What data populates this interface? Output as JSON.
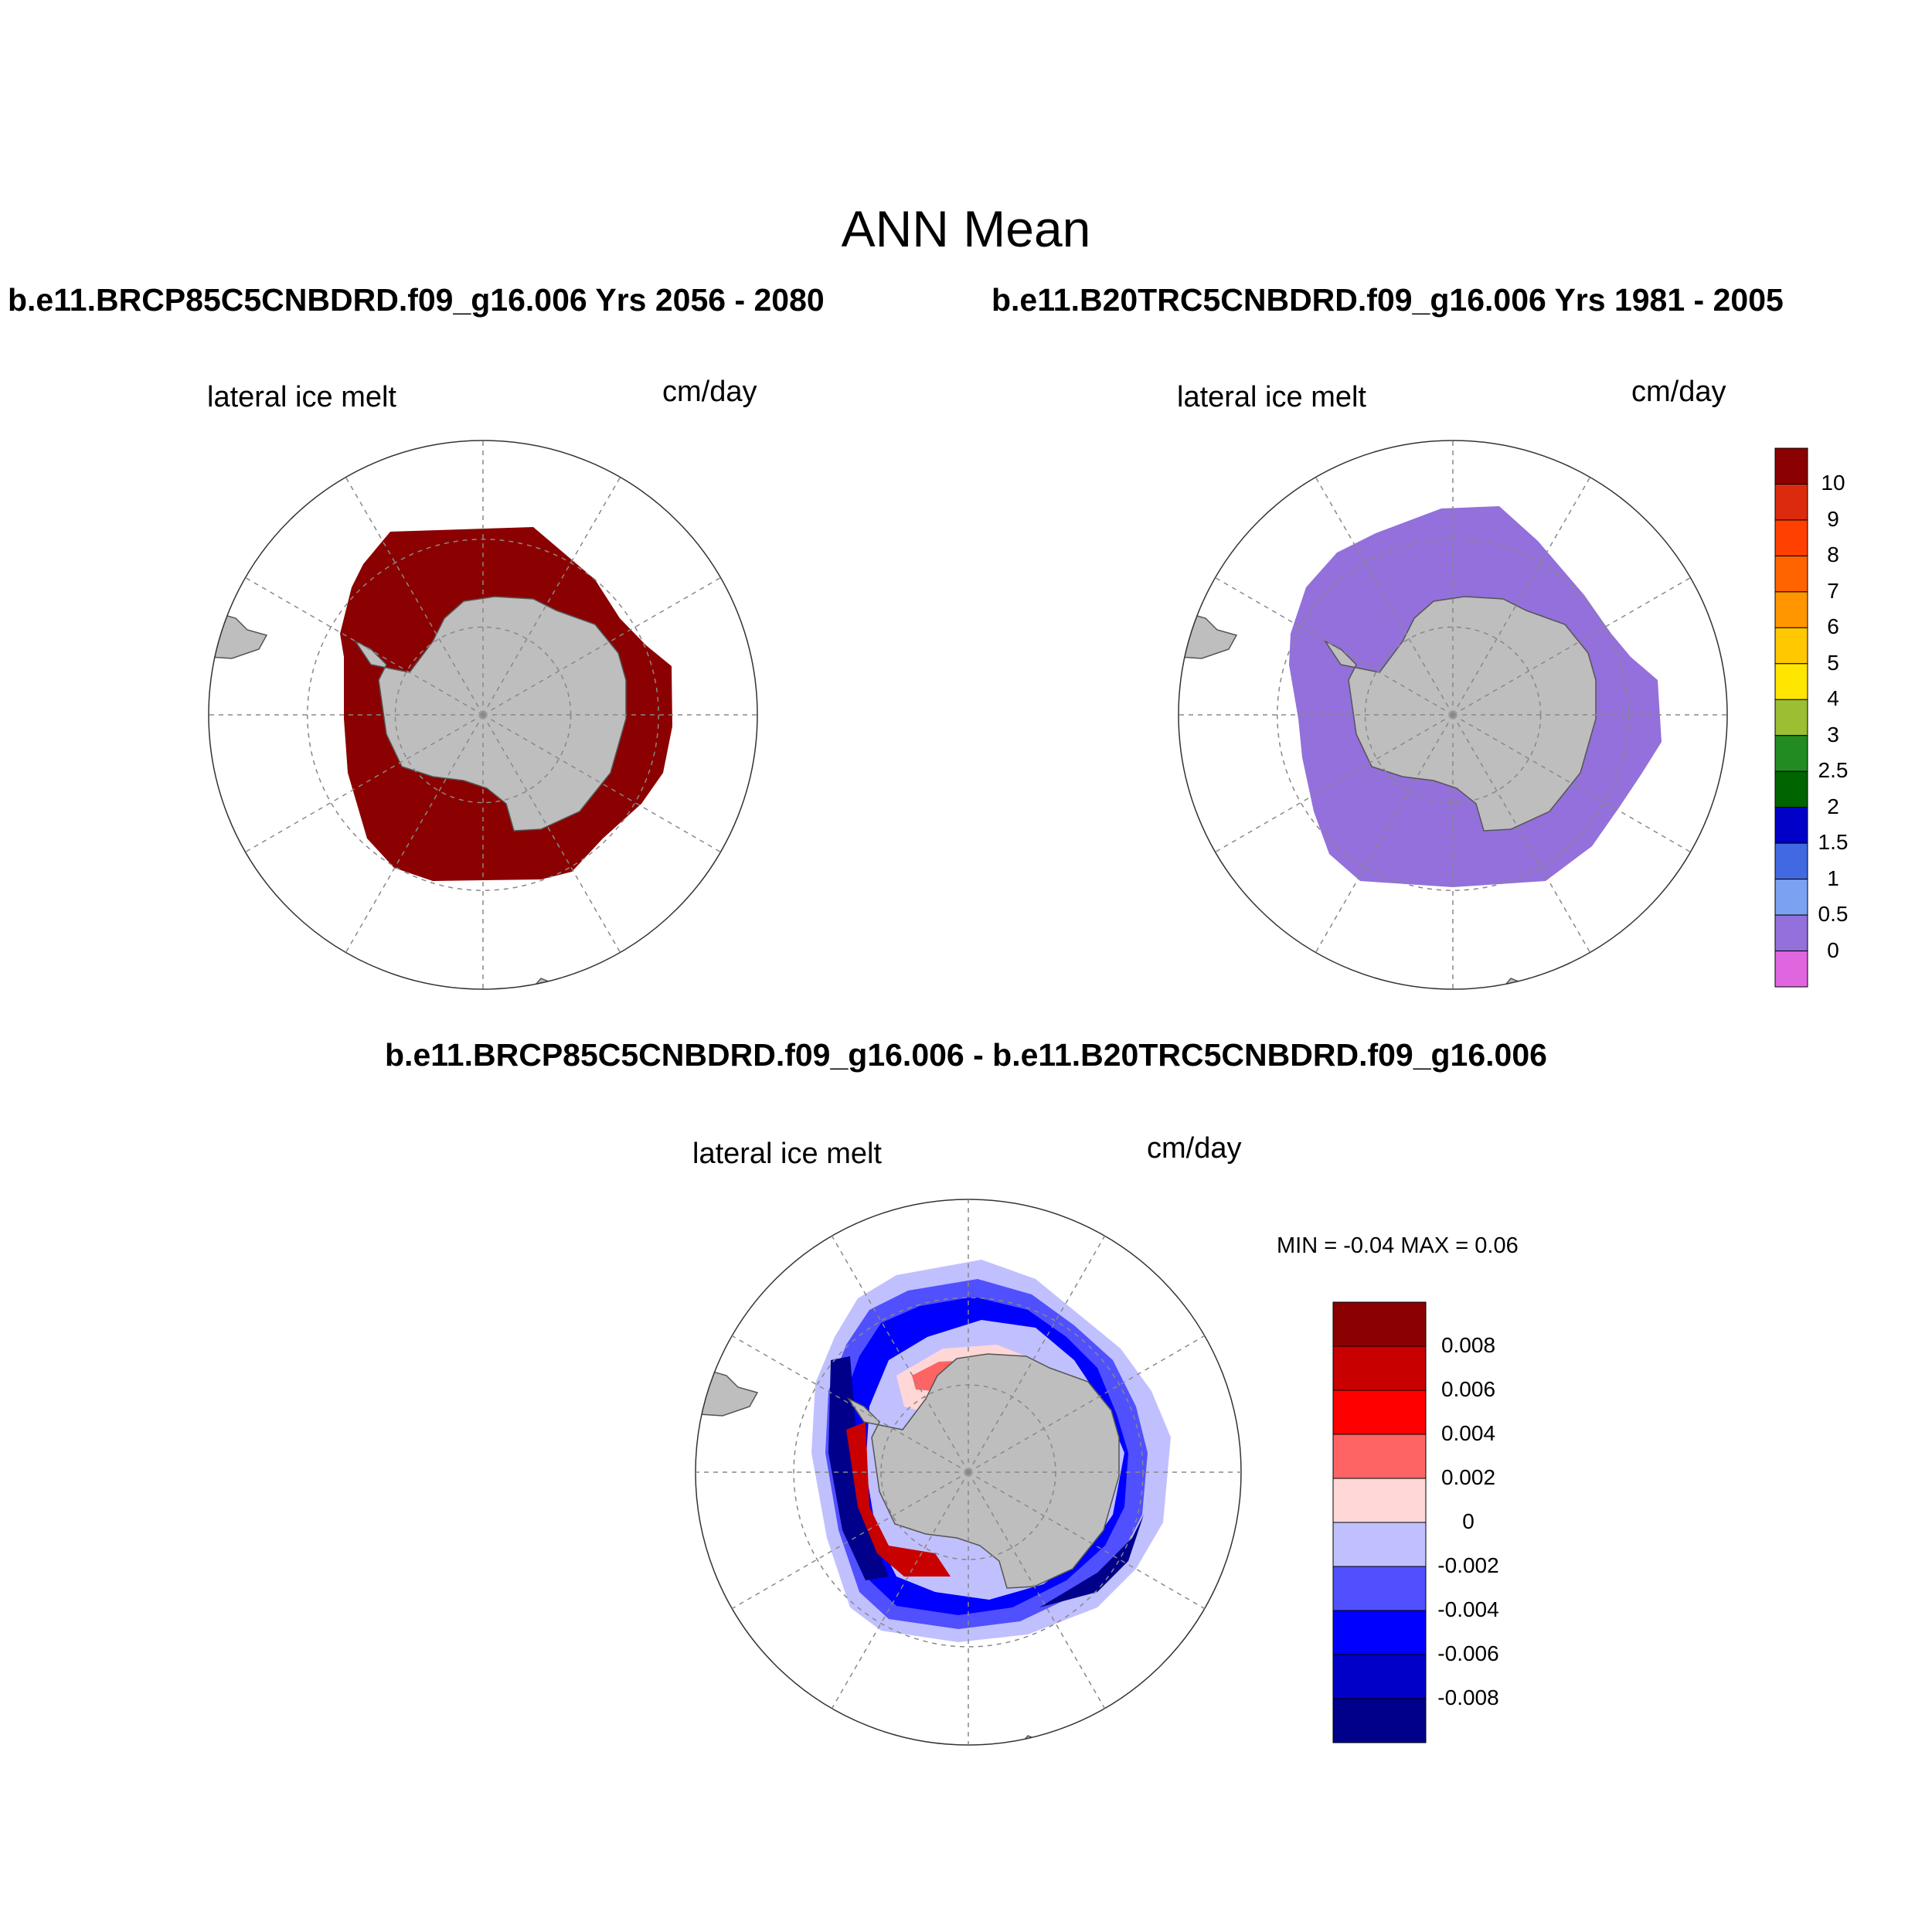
{
  "figure": {
    "title": "ANN Mean",
    "case_a_title": "b.e11.BRCP85C5CNBDRD.f09_g16.006  Yrs 2056 - 2080",
    "case_b_title": "b.e11.B20TRC5CNBDRD.f09_g16.006  Yrs 1981 - 2005",
    "diff_title": "b.e11.BRCP85C5CNBDRD.f09_g16.006 - b.e11.B20TRC5CNBDRD.f09_g16.006"
  },
  "panels": [
    {
      "variable": "lateral ice melt",
      "units": "cm/day",
      "field_level": "10+",
      "fill_color": "#8b0000"
    },
    {
      "variable": "lateral ice melt",
      "units": "cm/day",
      "field_level": "0 - 0.5",
      "fill_color": "#9370db"
    },
    {
      "variable": "lateral ice melt",
      "units": "cm/day",
      "min_max_label": "MIN =  -0.04 MAX =   0.06"
    }
  ],
  "colorbars": {
    "absolute": {
      "labels": [
        "10",
        "9",
        "8",
        "7",
        "6",
        "5",
        "4",
        "3",
        "2.5",
        "2",
        "1.5",
        "1",
        "0.5",
        "0"
      ],
      "colors": [
        "#8b0000",
        "#dc2a0f",
        "#ff4000",
        "#ff6400",
        "#ff9600",
        "#ffc800",
        "#ffe600",
        "#9bbe32",
        "#228b22",
        "#006400",
        "#0000c8",
        "#4169e1",
        "#7ba1f2",
        "#9370db",
        "#e066e0"
      ]
    },
    "difference": {
      "labels": [
        "0.008",
        "0.006",
        "0.004",
        "0.002",
        "0",
        "-0.002",
        "-0.004",
        "-0.006",
        "-0.008"
      ],
      "colors": [
        "#8b0000",
        "#c80000",
        "#ff0000",
        "#ff6464",
        "#ffd7d7",
        "#c0c0ff",
        "#5050ff",
        "#0000ff",
        "#0000c8",
        "#00008b"
      ]
    }
  },
  "map_colors": {
    "land": "#bebebe",
    "coast": "#555555",
    "grid": "#888888"
  }
}
